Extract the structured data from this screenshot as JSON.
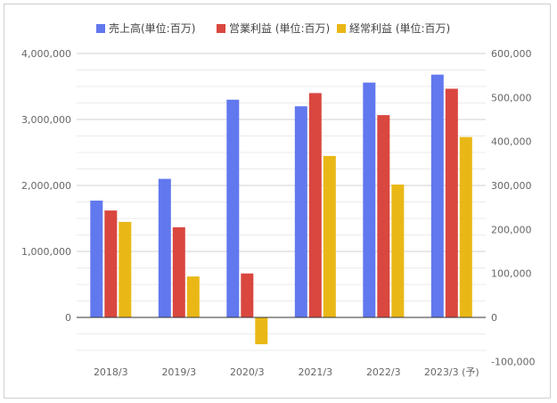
{
  "chart_data": {
    "type": "bar",
    "categories": [
      "2018/3",
      "2019/3",
      "2020/3",
      "2021/3",
      "2022/3",
      "2023/3 (予)"
    ],
    "series": [
      {
        "name": "売上高(単位:百万)",
        "axis": "left",
        "color": "#6178ee",
        "values": [
          1770000,
          2100000,
          3300000,
          3200000,
          3560000,
          3680000
        ]
      },
      {
        "name": "営業利益 (単位:百万)",
        "axis": "right",
        "color": "#d9473f",
        "values": [
          243000,
          205000,
          100000,
          510000,
          460000,
          520000
        ]
      },
      {
        "name": "経常利益 (単位:百万)",
        "axis": "right",
        "color": "#e9b817",
        "values": [
          217000,
          93000,
          -61000,
          367000,
          302000,
          410000
        ]
      }
    ],
    "left_axis": {
      "ylim": [
        -500000,
        4000000
      ],
      "ticks": [
        0,
        1000000,
        2000000,
        3000000,
        4000000
      ],
      "tick_labels": [
        "0",
        "1,000,000",
        "2,000,000",
        "3,000,000",
        "4,000,000"
      ]
    },
    "right_axis": {
      "ylim": [
        -100000,
        600000
      ],
      "ticks": [
        -100000,
        0,
        100000,
        200000,
        300000,
        400000,
        500000,
        600000
      ],
      "tick_labels": [
        "-100,000",
        "0",
        "100,000",
        "200,000",
        "300,000",
        "400,000",
        "500,000",
        "600,000"
      ]
    },
    "grid": true,
    "legend_position": "top"
  }
}
